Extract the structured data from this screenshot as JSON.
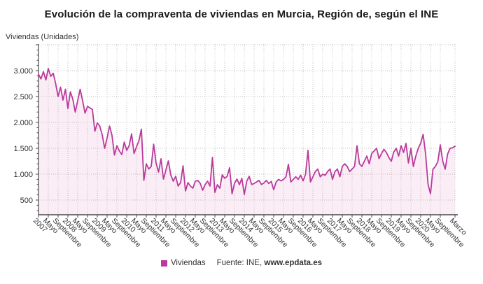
{
  "title": "Evolución de la compraventa de viviendas en Murcia, Región de, según el INE",
  "y_axis_title": "Viviendas (Unidades)",
  "legend": {
    "label": "Viviendas",
    "source_prefix": "Fuente: INE,",
    "source_url": "www.epdata.es"
  },
  "colors": {
    "line": "#ba3a9b",
    "area_fill": "#faedf6",
    "grid": "#9a8f96",
    "axis": "#4a4a4a",
    "tick_text": "#333333",
    "title_text": "#1a1a1a"
  },
  "chart_data": {
    "type": "area",
    "title": "Evolución de la compraventa de viviendas en Murcia, Región de, según el INE",
    "xlabel": "",
    "ylabel": "Viviendas (Unidades)",
    "series_name": "Viviendas",
    "legend_position": "bottom",
    "grid": true,
    "x_start": "2007-01",
    "x_end": "2021-03",
    "x_tick_labels": [
      "2007",
      "Mayo",
      "Septiembre",
      "2008",
      "Mayo",
      "Septiembre",
      "2009",
      "Mayo",
      "Septiembre",
      "2010",
      "Mayo",
      "Septiembre",
      "2011",
      "Mayo",
      "Septiembre",
      "2012",
      "Mayo",
      "Septiembre",
      "2013",
      "Mayo",
      "Septiembre",
      "2014",
      "Mayo",
      "Septiembre",
      "2015",
      "Mayo",
      "Septiembre",
      "2016",
      "Mayo",
      "Septiembre",
      "2017",
      "Mayo",
      "Septiembre",
      "2018",
      "Mayo",
      "Septiembre",
      "2019",
      "Mayo",
      "Septiembre",
      "2020",
      "Mayo",
      "Septiembre",
      "Marzo"
    ],
    "x_tick_months": [
      0,
      4,
      8,
      12,
      16,
      20,
      24,
      28,
      32,
      36,
      40,
      44,
      48,
      52,
      56,
      60,
      64,
      68,
      72,
      76,
      80,
      84,
      88,
      92,
      96,
      100,
      104,
      108,
      112,
      116,
      120,
      124,
      128,
      132,
      136,
      140,
      144,
      148,
      152,
      156,
      160,
      164,
      170
    ],
    "y_tick_labels": [
      "500",
      "1.000",
      "1.500",
      "2.000",
      "2.500",
      "3.000"
    ],
    "y_tick_values": [
      500,
      1000,
      1500,
      2000,
      2500,
      3000
    ],
    "y_gridline_values": [
      500,
      1000,
      1500,
      2000,
      2500,
      3000,
      3500
    ],
    "ylim": [
      216,
      3513
    ],
    "months_total": 170,
    "values": [
      2930,
      2840,
      2980,
      2820,
      3040,
      2890,
      2950,
      2750,
      2500,
      2680,
      2430,
      2640,
      2270,
      2590,
      2450,
      2200,
      2420,
      2640,
      2420,
      2180,
      2310,
      2280,
      2250,
      1830,
      1990,
      1930,
      1760,
      1500,
      1700,
      1930,
      1750,
      1370,
      1550,
      1450,
      1380,
      1620,
      1460,
      1550,
      1780,
      1400,
      1530,
      1650,
      1870,
      880,
      1200,
      1100,
      1150,
      1580,
      1216,
      1040,
      1297,
      905,
      1081,
      1257,
      986,
      865,
      959,
      770,
      838,
      1162,
      676,
      838,
      770,
      730,
      865,
      878,
      824,
      689,
      797,
      865,
      770,
      1324,
      649,
      797,
      730,
      986,
      919,
      959,
      1122,
      622,
      824,
      905,
      797,
      919,
      608,
      865,
      959,
      800,
      820,
      850,
      880,
      800,
      830,
      880,
      820,
      860,
      700,
      850,
      900,
      870,
      900,
      950,
      1190,
      850,
      900,
      950,
      900,
      980,
      870,
      1000,
      1460,
      850,
      950,
      1050,
      1100,
      950,
      1000,
      980,
      1050,
      1100,
      900,
      1050,
      1100,
      950,
      1150,
      1200,
      1150,
      1050,
      1100,
      1150,
      1550,
      1200,
      1150,
      1250,
      1350,
      1200,
      1400,
      1450,
      1500,
      1300,
      1400,
      1480,
      1420,
      1320,
      1250,
      1430,
      1500,
      1350,
      1550,
      1420,
      1594,
      1216,
      1500,
      1148,
      1350,
      1500,
      1600,
      1770,
      1392,
      806,
      622,
      1095,
      1150,
      1243,
      1567,
      1250,
      1095,
      1392,
      1500,
      1510,
      1540
    ]
  }
}
